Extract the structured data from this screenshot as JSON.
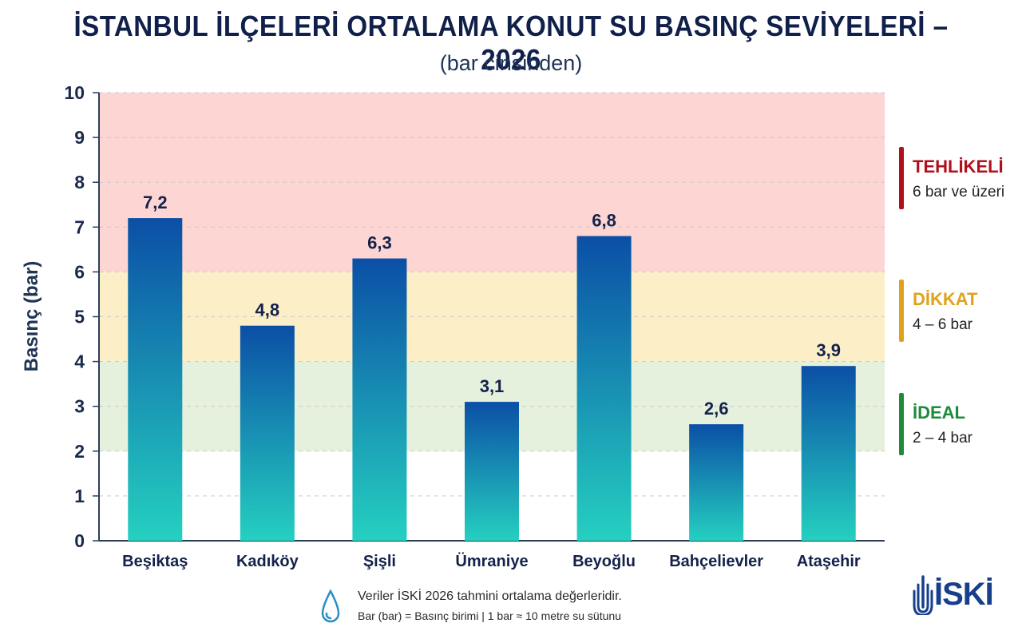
{
  "header": {
    "title": "İSTANBUL İLÇELERİ ORTALAMA KONUT SU BASINÇ SEVİYELERİ – 2026",
    "subtitle": "(bar cinsinden)"
  },
  "chart_data": {
    "type": "bar",
    "title": "İSTANBUL İLÇELERİ ORTALAMA KONUT SU BASINÇ SEVİYELERİ – 2026",
    "subtitle": "(bar cinsinden)",
    "xlabel": "",
    "ylabel": "Basınç (bar)",
    "ylim": [
      0,
      10
    ],
    "yticks": [
      0,
      1,
      2,
      3,
      4,
      5,
      6,
      7,
      8,
      9,
      10
    ],
    "grid": true,
    "categories": [
      "Beşiktaş",
      "Kadıköy",
      "Şişli",
      "Ümraniye",
      "Beyoğlu",
      "Bahçelievler",
      "Ataşehir"
    ],
    "values": [
      7.2,
      4.8,
      6.3,
      3.1,
      6.8,
      2.6,
      3.9
    ],
    "value_labels": [
      "7,2",
      "4,8",
      "6,3",
      "3,1",
      "6,8",
      "2,6",
      "3,9"
    ],
    "bands": [
      {
        "name": "TEHLİKELİ",
        "from": 6,
        "to": 10,
        "color": "#fdd5d3"
      },
      {
        "name": "DİKKAT",
        "from": 4,
        "to": 6,
        "color": "#fcefc8"
      },
      {
        "name": "İDEAL",
        "from": 2,
        "to": 4,
        "color": "#e5f1dc"
      }
    ],
    "bar_color_top": "#0b4fa6",
    "bar_color_bottom": "#25d0c0"
  },
  "legend": [
    {
      "title": "TEHLİKELİ",
      "desc": "6 bar ve üzeri",
      "color": "#b0101c"
    },
    {
      "title": "DİKKAT",
      "desc": "4 – 6 bar",
      "color": "#e0a21a"
    },
    {
      "title": "İDEAL",
      "desc": "2 – 4 bar",
      "color": "#1f8a3c"
    }
  ],
  "footer": {
    "line1": "Veriler İSKİ 2026 tahmini ortalama değerleridir.",
    "line2": "Bar (bar) = Basınç birimi  |  1 bar ≈ 10 metre su sütunu"
  },
  "logo": {
    "text": "İSKİ",
    "color": "#163f8c"
  }
}
